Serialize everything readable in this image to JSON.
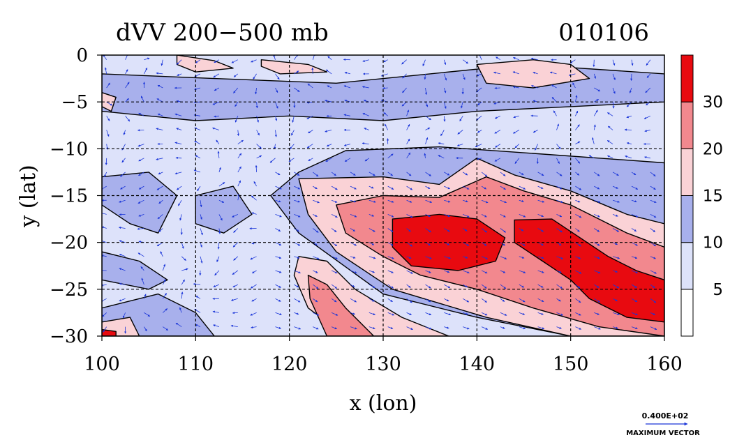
{
  "chart_data": {
    "type": "heatmap",
    "title": "dVV 200−500 mb",
    "date_label": "010106",
    "xlabel": "x (lon)",
    "ylabel": "y (lat)",
    "xlim": [
      100,
      160
    ],
    "ylim": [
      -30,
      0
    ],
    "x_ticks": [
      100,
      110,
      120,
      130,
      140,
      150,
      160
    ],
    "x_tick_labels": [
      "100",
      "110",
      "120",
      "130",
      "140",
      "150",
      "160"
    ],
    "y_ticks": [
      0,
      -5,
      -10,
      -15,
      -20,
      -25,
      -30
    ],
    "y_tick_labels": [
      "0",
      "−5",
      "−10",
      "−15",
      "−20",
      "−25",
      "−30"
    ],
    "grid": true,
    "colorbar": {
      "levels": [
        0,
        5,
        10,
        15,
        20,
        30,
        40
      ],
      "tick_values": [
        5,
        10,
        15,
        20,
        30
      ],
      "tick_labels": [
        "5",
        "10",
        "15",
        "20",
        "30"
      ],
      "colors": [
        "#ffffff",
        "#dde2fa",
        "#a8b0ec",
        "#fad2d6",
        "#f2888e",
        "#e80a10"
      ]
    },
    "vector_legend": {
      "value": "0.400E+02",
      "label": "MAXIMUM VECTOR",
      "color": "#1a35d8"
    },
    "regions": [
      {
        "level": 2,
        "polygon": [
          [
            126,
            -10.2
          ],
          [
            136,
            -9.8
          ],
          [
            146,
            -10.5
          ],
          [
            160,
            -11.5
          ],
          [
            160,
            -30
          ],
          [
            150,
            -30
          ],
          [
            140,
            -28
          ],
          [
            130,
            -25.5
          ],
          [
            121,
            -19
          ],
          [
            118,
            -15
          ],
          [
            121,
            -12.5
          ]
        ]
      },
      {
        "level": 3,
        "polygon": [
          [
            121,
            -13.2
          ],
          [
            130,
            -13
          ],
          [
            136,
            -13.8
          ],
          [
            140,
            -11
          ],
          [
            144,
            -12.8
          ],
          [
            150,
            -14.5
          ],
          [
            156,
            -17
          ],
          [
            160,
            -18
          ],
          [
            160,
            -30
          ],
          [
            150,
            -30
          ],
          [
            141,
            -28
          ],
          [
            131,
            -25
          ],
          [
            125,
            -21
          ],
          [
            122,
            -17
          ]
        ]
      },
      {
        "level": 4,
        "polygon": [
          [
            125,
            -16
          ],
          [
            130,
            -15
          ],
          [
            136,
            -15.2
          ],
          [
            141,
            -13
          ],
          [
            145,
            -14.5
          ],
          [
            150,
            -16
          ],
          [
            156,
            -19
          ],
          [
            160,
            -20.5
          ],
          [
            160,
            -30
          ],
          [
            153,
            -29
          ],
          [
            146,
            -27
          ],
          [
            140,
            -25
          ],
          [
            134,
            -23.5
          ],
          [
            130,
            -21.5
          ],
          [
            126,
            -19
          ]
        ]
      },
      {
        "level": 5,
        "polygon": [
          [
            131,
            -17.5
          ],
          [
            136,
            -17
          ],
          [
            140,
            -17.5
          ],
          [
            143,
            -19.5
          ],
          [
            142,
            -22
          ],
          [
            138,
            -23
          ],
          [
            133,
            -22.5
          ],
          [
            131,
            -20.5
          ]
        ]
      },
      {
        "level": 5,
        "polygon": [
          [
            144,
            -17.6
          ],
          [
            148,
            -17.5
          ],
          [
            151,
            -19.5
          ],
          [
            154,
            -21.5
          ],
          [
            157,
            -23
          ],
          [
            160,
            -24
          ],
          [
            160,
            -28.5
          ],
          [
            156,
            -28
          ],
          [
            152,
            -26
          ],
          [
            150,
            -24
          ],
          [
            147,
            -22
          ],
          [
            144,
            -20
          ]
        ]
      },
      {
        "level": 3,
        "polygon": [
          [
            121,
            -21.5
          ],
          [
            124,
            -22
          ],
          [
            127,
            -25
          ],
          [
            132,
            -28
          ],
          [
            137,
            -30
          ],
          [
            126,
            -30
          ],
          [
            122,
            -27
          ],
          [
            120.5,
            -23.5
          ]
        ]
      },
      {
        "level": 4,
        "polygon": [
          [
            122,
            -23.5
          ],
          [
            124,
            -24.5
          ],
          [
            126,
            -27
          ],
          [
            129,
            -30
          ],
          [
            124,
            -30
          ],
          [
            122.2,
            -26
          ]
        ]
      },
      {
        "level": 2,
        "polygon": [
          [
            100,
            -27
          ],
          [
            106,
            -25.5
          ],
          [
            110,
            -27.5
          ],
          [
            112,
            -30
          ],
          [
            100,
            -30
          ]
        ]
      },
      {
        "level": 3,
        "polygon": [
          [
            100,
            -28.5
          ],
          [
            103,
            -28
          ],
          [
            104,
            -30
          ],
          [
            100,
            -30
          ]
        ]
      },
      {
        "level": 5,
        "polygon": [
          [
            100,
            -29.3
          ],
          [
            101.5,
            -29.5
          ],
          [
            101.5,
            -30
          ],
          [
            100,
            -30
          ]
        ]
      },
      {
        "level": 2,
        "polygon": [
          [
            100,
            -13
          ],
          [
            105,
            -12.5
          ],
          [
            108,
            -15
          ],
          [
            106,
            -19
          ],
          [
            103,
            -18
          ],
          [
            100,
            -16
          ]
        ]
      },
      {
        "level": 2,
        "polygon": [
          [
            110,
            -15
          ],
          [
            114,
            -14
          ],
          [
            116,
            -17
          ],
          [
            113,
            -19
          ],
          [
            110,
            -18
          ]
        ]
      },
      {
        "level": 2,
        "polygon": [
          [
            100,
            -21
          ],
          [
            104,
            -22
          ],
          [
            107,
            -24
          ],
          [
            105,
            -25
          ],
          [
            100,
            -24
          ]
        ]
      },
      {
        "level": 2,
        "polygon": [
          [
            100,
            -2
          ],
          [
            112,
            -2.5
          ],
          [
            125,
            -3
          ],
          [
            135,
            -2
          ],
          [
            145,
            -1
          ],
          [
            160,
            -2
          ],
          [
            160,
            -5
          ],
          [
            150,
            -5.5
          ],
          [
            140,
            -6
          ],
          [
            130,
            -7
          ],
          [
            120,
            -6.5
          ],
          [
            110,
            -7
          ],
          [
            100,
            -6
          ]
        ]
      },
      {
        "level": 3,
        "polygon": [
          [
            108,
            0
          ],
          [
            112,
            -0.6
          ],
          [
            114,
            -1.4
          ],
          [
            110,
            -1.8
          ],
          [
            108,
            -1
          ]
        ]
      },
      {
        "level": 3,
        "polygon": [
          [
            117,
            -0.5
          ],
          [
            122,
            -1
          ],
          [
            124,
            -1.8
          ],
          [
            119,
            -2
          ],
          [
            117,
            -1.2
          ]
        ]
      },
      {
        "level": 3,
        "polygon": [
          [
            140,
            -1
          ],
          [
            146,
            -0.5
          ],
          [
            150,
            -1
          ],
          [
            152,
            -2.5
          ],
          [
            146,
            -3.5
          ],
          [
            141,
            -3
          ]
        ]
      },
      {
        "level": 3,
        "polygon": [
          [
            100,
            -4
          ],
          [
            101.5,
            -4.5
          ],
          [
            101,
            -6
          ],
          [
            100,
            -5.5
          ]
        ]
      }
    ]
  }
}
